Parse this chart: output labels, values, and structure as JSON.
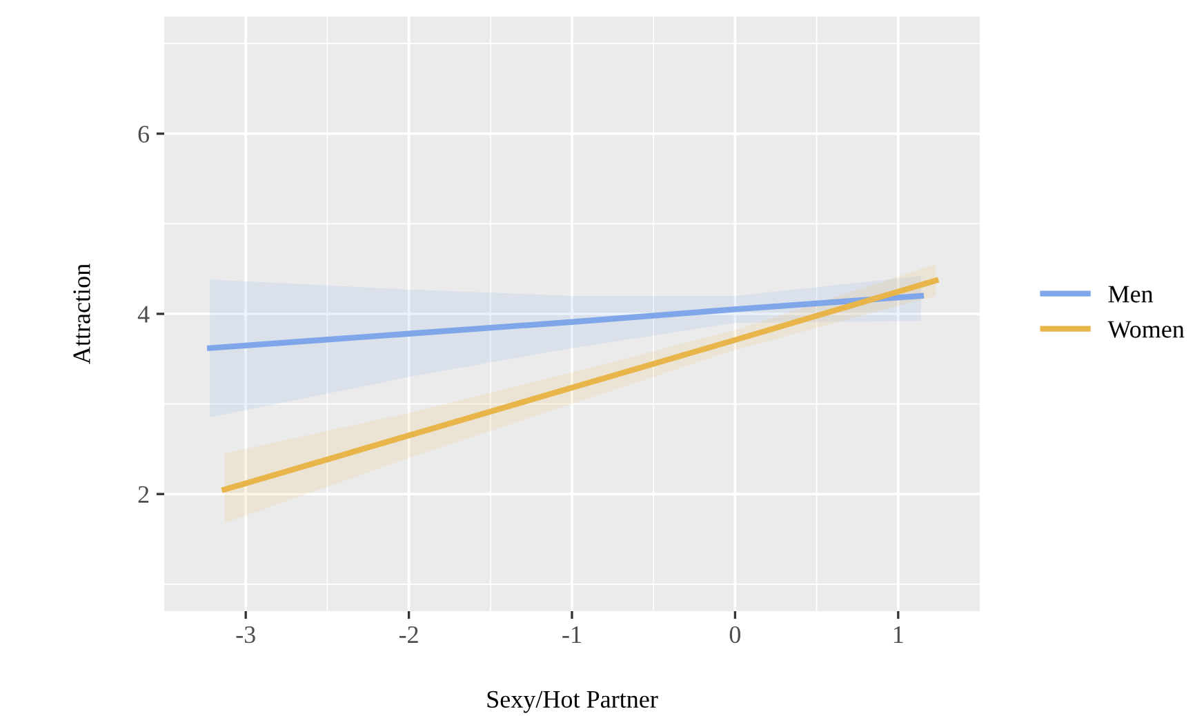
{
  "chart_data": {
    "type": "line",
    "xlabel": "Sexy/Hot Partner",
    "ylabel": "Attraction",
    "series": [
      {
        "name": "Men",
        "color": "#7ea6e9",
        "x": [
          -3.22,
          -2,
          -1,
          0,
          1.14
        ],
        "values": [
          3.62,
          3.78,
          3.91,
          4.05,
          4.2
        ],
        "lower": [
          2.85,
          3.3,
          3.62,
          3.9,
          3.92
        ],
        "upper": [
          4.38,
          4.27,
          4.2,
          4.2,
          4.42
        ]
      },
      {
        "name": "Women",
        "color": "#e8b54a",
        "x": [
          -3.13,
          -2,
          -1,
          0,
          1.23
        ],
        "values": [
          2.05,
          2.65,
          3.18,
          3.71,
          4.37
        ],
        "lower": [
          1.68,
          2.4,
          3.0,
          3.6,
          4.2
        ],
        "upper": [
          2.45,
          2.9,
          3.35,
          3.82,
          4.55
        ]
      }
    ],
    "xlim": [
      -3.5,
      1.5
    ],
    "xticks": [
      -3,
      -2,
      -1,
      0,
      1
    ],
    "ylim": [
      0.7,
      7.3
    ],
    "yticks": [
      2,
      4,
      6
    ],
    "grid": true,
    "legend": "right",
    "marker": "none",
    "line_style": "solid"
  }
}
